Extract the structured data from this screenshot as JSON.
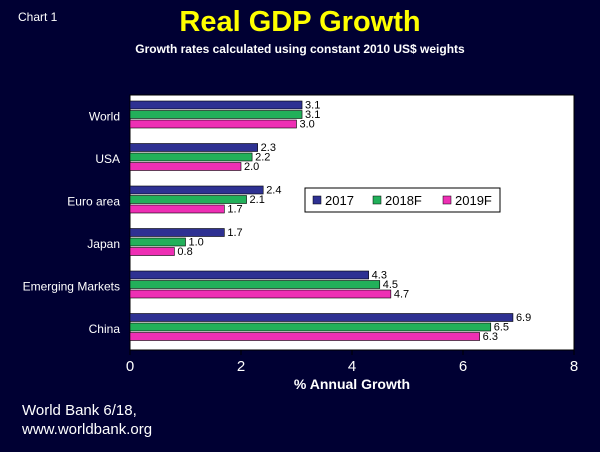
{
  "header": {
    "chart_label": "Chart  1",
    "title": "Real GDP Growth",
    "subtitle": "Growth rates calculated using constant 2010 US$ weights"
  },
  "footer": {
    "source_line1": "World Bank 6/18,",
    "source_line2": "www.worldbank.org"
  },
  "colors": {
    "background": "#000033",
    "title": "#ffff00",
    "plot_area": "#ffffff"
  },
  "chart_data": {
    "type": "bar",
    "orientation": "horizontal",
    "title": "Real GDP Growth",
    "subtitle": "Growth rates calculated using constant 2010 US$ weights",
    "xlabel": "% Annual Growth",
    "ylabel": "",
    "xlim": [
      0,
      8
    ],
    "xticks": [
      0,
      2,
      4,
      6,
      8
    ],
    "grid": false,
    "legend_position": "right-middle",
    "categories": [
      "World",
      "USA",
      "Euro area",
      "Japan",
      "Emerging Markets",
      "China"
    ],
    "series": [
      {
        "name": "2017",
        "color": "#2e3192",
        "values": [
          3.1,
          2.3,
          2.4,
          1.7,
          4.3,
          6.9
        ],
        "labels": [
          "3.1",
          "2.3",
          "2.4",
          "1.7",
          "4.3",
          "6.9"
        ]
      },
      {
        "name": "2018F",
        "color": "#22b05a",
        "values": [
          3.1,
          2.2,
          2.1,
          1.0,
          4.5,
          6.5
        ],
        "labels": [
          "3.1",
          "2.2",
          "2.1",
          "1.0",
          "4.5",
          "6.5"
        ]
      },
      {
        "name": "2019F",
        "color": "#ee2fb4",
        "values": [
          3.0,
          2.0,
          1.7,
          0.8,
          4.7,
          6.3
        ],
        "labels": [
          "3.0",
          "2.0",
          "1.7",
          "0.8",
          "4.7",
          "6.3"
        ]
      }
    ]
  }
}
